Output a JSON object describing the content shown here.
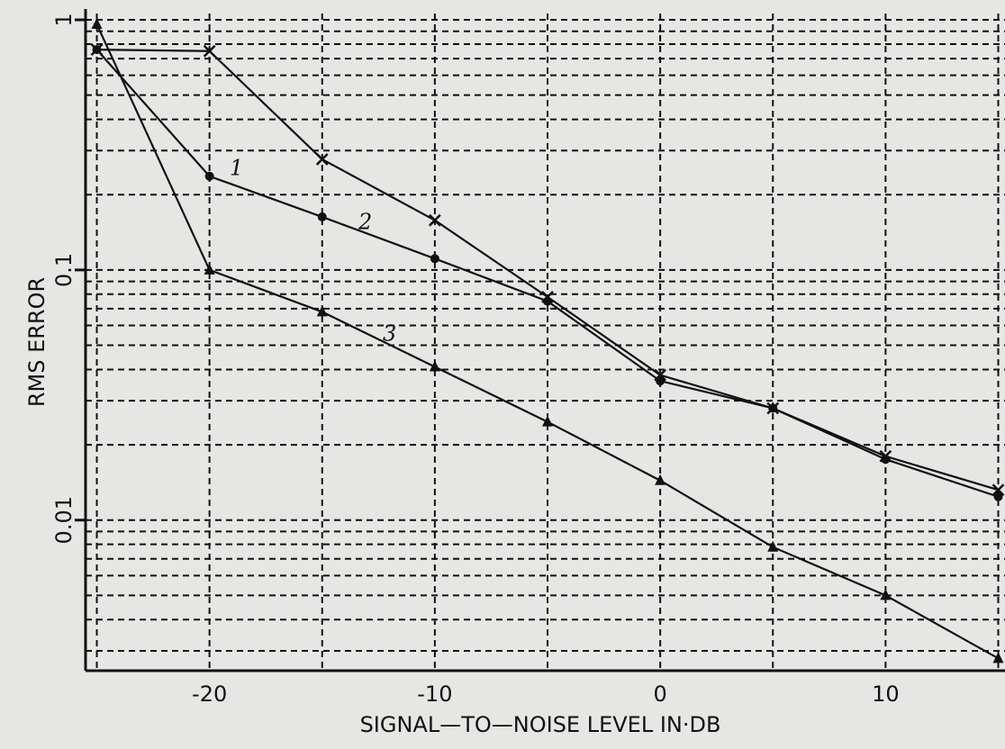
{
  "chart_data": {
    "type": "line",
    "xlabel": "SIGNAL—TO—NOISE LEVEL IN·DB",
    "ylabel": "RMS ERROR",
    "x": [
      -25,
      -20,
      -15,
      -10,
      -5,
      0,
      5,
      10,
      15
    ],
    "series": [
      {
        "name": "1",
        "color": "#111111",
        "marker": "x",
        "values": [
          0.76,
          0.75,
          0.277,
          0.158,
          0.078,
          0.038,
          0.028,
          0.018,
          0.0132
        ]
      },
      {
        "name": "2",
        "color": "#111111",
        "marker": "o",
        "values": [
          0.76,
          0.237,
          0.163,
          0.111,
          0.075,
          0.036,
          0.028,
          0.0175,
          0.0124
        ]
      },
      {
        "name": "3",
        "color": "#111111",
        "marker": "^",
        "values": [
          0.96,
          0.1,
          0.068,
          0.041,
          0.0247,
          0.0144,
          0.0078,
          0.005,
          0.0028
        ]
      }
    ],
    "xlim": [
      -25.5,
      15.3
    ],
    "xticks": [
      -20,
      -10,
      0,
      10
    ],
    "x_minor_ticks": [
      -25,
      -15,
      -5,
      5,
      15
    ],
    "ylim": [
      0.0025,
      1.06
    ],
    "yscale": "log",
    "yticks": [
      0.01,
      0.1,
      1
    ],
    "y_minor_ticks": [
      0.003,
      0.004,
      0.005,
      0.006,
      0.007,
      0.008,
      0.009,
      0.02,
      0.03,
      0.04,
      0.05,
      0.06,
      0.07,
      0.08,
      0.09,
      0.2,
      0.3,
      0.4,
      0.5,
      0.6,
      0.7,
      0.8,
      0.9
    ],
    "grid": true
  }
}
